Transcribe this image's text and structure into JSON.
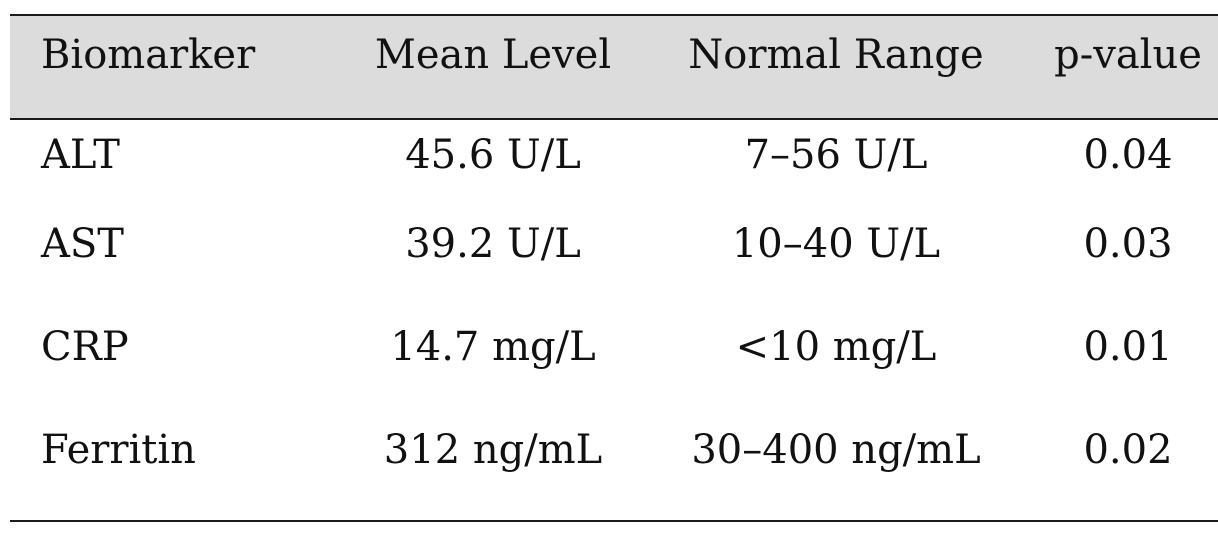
{
  "table": {
    "headers": [
      "Biomarker",
      "Mean Level",
      "Normal Range",
      "p-value"
    ],
    "rows": [
      [
        "ALT",
        "45.6 U/L",
        "7–56 U/L",
        "0.04"
      ],
      [
        "AST",
        "39.2 U/L",
        "10–40 U/L",
        "0.03"
      ],
      [
        "CRP",
        "14.7 mg/L",
        "<10 mg/L",
        "0.01"
      ],
      [
        "Ferritin",
        "312 ng/mL",
        "30–400 ng/mL",
        "0.02"
      ]
    ]
  }
}
